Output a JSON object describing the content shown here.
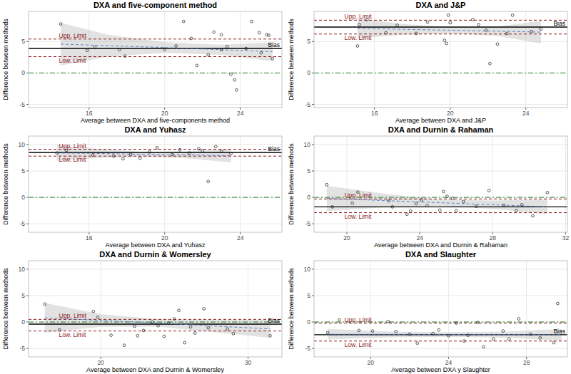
{
  "chart_data": [
    {
      "type": "scatter",
      "title": "DXA and five-component method",
      "x_label": "Average between DXA and five-components method",
      "y_label": "Difference between methods",
      "xlim": [
        12.8,
        26.2
      ],
      "xticks": [
        16,
        20,
        24
      ],
      "ylim": [
        -5.5,
        9.8
      ],
      "yticks": [
        -5,
        0,
        5
      ],
      "grid": true,
      "marker": "circle",
      "color": "#1a1a1a",
      "x": [
        14.5,
        15.9,
        16.3,
        17.6,
        17.9,
        20.0,
        20.6,
        21.0,
        21.4,
        21.7,
        22.3,
        22.6,
        23.0,
        23.0,
        23.3,
        23.5,
        23.7,
        23.8,
        24.3,
        24.6,
        25.0,
        25.1,
        25.4,
        25.5,
        25.7
      ],
      "values": [
        7.8,
        3.6,
        4.1,
        3.7,
        2.7,
        3.8,
        4.3,
        8.2,
        5.5,
        1.2,
        2.9,
        6.5,
        6.1,
        3.7,
        4.2,
        -0.2,
        -1.1,
        -2.7,
        3.9,
        8.2,
        6.4,
        3.2,
        6.1,
        6.0,
        2.3
      ],
      "reference_lines": [
        {
          "label": "Bias",
          "value": 3.9,
          "color": "#000000",
          "line_style": "solid"
        },
        {
          "label": "Upp. Limit",
          "value": 5.4,
          "color": "#8b1a1a",
          "line_style": "dashed"
        },
        {
          "label": "Low. Limit",
          "value": 2.6,
          "color": "#8b1a1a",
          "line_style": "dashed"
        },
        {
          "value": 0,
          "color": "#1e7b1e",
          "line_style": "dashdot"
        }
      ],
      "fit": {
        "x": [
          14.5,
          17,
          20,
          23,
          25.7
        ],
        "values": [
          4.6,
          4.35,
          4.05,
          3.7,
          3.4
        ],
        "lower": [
          1.2,
          2.6,
          3.2,
          2.9,
          1.9
        ],
        "upper": [
          8.0,
          6.1,
          4.9,
          4.5,
          4.9
        ],
        "color": "#5b7fc7",
        "band_color": "#bebebe",
        "line_style": "dashed"
      }
    },
    {
      "type": "scatter",
      "title": "DXA and J&P",
      "x_label": "Average between DXA and J&P",
      "y_label": "Difference between methods",
      "xlim": [
        12.8,
        26.2
      ],
      "xticks": [
        16,
        20,
        24
      ],
      "ylim": [
        -5.5,
        9.8
      ],
      "yticks": [
        -5,
        0,
        5
      ],
      "grid": true,
      "marker": "circle",
      "color": "#1a1a1a",
      "x": [
        15.1,
        15.2,
        15.6,
        16.6,
        17.2,
        18.2,
        18.8,
        19.7,
        19.8,
        19.9,
        20.0,
        21.2,
        21.5,
        21.9,
        22.1,
        22.5,
        23.0,
        23.3,
        24.3,
        24.8
      ],
      "values": [
        4.3,
        7.7,
        8.5,
        6.4,
        7.6,
        6.3,
        8.1,
        5.2,
        4.7,
        9.2,
        8.0,
        8.5,
        7.7,
        6.8,
        1.5,
        4.6,
        6.3,
        9.2,
        6.6,
        7.0
      ],
      "reference_lines": [
        {
          "label": "Bias",
          "value": 7.3,
          "color": "#000000",
          "line_style": "solid"
        },
        {
          "label": "Upp. Limit",
          "value": 8.4,
          "color": "#8b1a1a",
          "line_style": "dashed"
        },
        {
          "label": "Low. Limit",
          "value": 6.2,
          "color": "#8b1a1a",
          "line_style": "dashed"
        },
        {
          "value": 0,
          "color": "#1e7b1e",
          "line_style": "dashdot"
        }
      ],
      "fit": {
        "x": [
          15.1,
          17.5,
          20,
          22.5,
          24.8
        ],
        "values": [
          7.1,
          6.95,
          6.8,
          6.65,
          6.5
        ],
        "lower": [
          5.5,
          6.1,
          6.3,
          5.9,
          4.7
        ],
        "upper": [
          8.7,
          7.8,
          7.3,
          7.4,
          8.3
        ],
        "color": "#5b7fc7",
        "band_color": "#bebebe",
        "line_style": "dashed"
      }
    },
    {
      "type": "scatter",
      "title": "DXA and Yuhasz",
      "x_label": "Average between DXA and Yuhasz",
      "y_label": "Difference between methods",
      "xlim": [
        12.8,
        26.2
      ],
      "xticks": [
        16,
        20,
        24
      ],
      "ylim": [
        -6.6,
        11.6
      ],
      "yticks": [
        -5,
        0,
        5,
        10
      ],
      "grid": true,
      "marker": "circle",
      "color": "#1a1a1a",
      "x": [
        14.3,
        14.8,
        16.2,
        17.3,
        17.8,
        18.2,
        18.7,
        19.2,
        19.6,
        20.4,
        20.8,
        21.3,
        21.8,
        22.0,
        22.3,
        22.7,
        23.0,
        23.5
      ],
      "values": [
        8.4,
        8.9,
        8.0,
        7.8,
        7.3,
        8.1,
        7.4,
        8.6,
        9.4,
        8.1,
        9.0,
        8.4,
        9.2,
        8.8,
        3.0,
        9.6,
        8.7,
        8.3
      ],
      "reference_lines": [
        {
          "label": "Bias",
          "value": 8.5,
          "color": "#000000",
          "line_style": "solid"
        },
        {
          "label": "Upp. Limit",
          "value": 9.1,
          "color": "#8b1a1a",
          "line_style": "dashed"
        },
        {
          "label": "Low. Limit",
          "value": 7.8,
          "color": "#8b1a1a",
          "line_style": "dashed"
        },
        {
          "value": 0,
          "color": "#1e7b1e",
          "line_style": "dashdot"
        }
      ],
      "fit": {
        "x": [
          14.3,
          16.6,
          18.9,
          21.2,
          23.5
        ],
        "values": [
          8.4,
          8.3,
          8.15,
          8.05,
          7.9
        ],
        "lower": [
          6.9,
          7.5,
          7.7,
          7.4,
          6.6
        ],
        "upper": [
          9.9,
          9.1,
          8.6,
          8.7,
          9.2
        ],
        "color": "#5b7fc7",
        "band_color": "#bebebe",
        "line_style": "dashed"
      }
    },
    {
      "type": "scatter",
      "title": "DXA and Durnin & Rahaman",
      "x_label": "Average between DXA and Durnin & Rahaman",
      "y_label": "Difference between methods",
      "xlim": [
        18.2,
        32.1
      ],
      "xticks": [
        20,
        24,
        28,
        32
      ],
      "ylim": [
        -6.6,
        11.6
      ],
      "yticks": [
        -5,
        0,
        5,
        10
      ],
      "grid": true,
      "marker": "circle",
      "color": "#1a1a1a",
      "x": [
        18.9,
        19.2,
        20.3,
        20.6,
        22.3,
        22.5,
        23.3,
        23.5,
        23.8,
        24.1,
        24.4,
        25.1,
        25.3,
        25.5,
        25.8,
        26.0,
        26.4,
        27.1,
        27.8,
        28.6,
        29.3,
        29.6,
        30.2,
        31.0
      ],
      "values": [
        2.4,
        -1.8,
        -1.1,
        1.0,
        -0.6,
        -1.8,
        -3.2,
        -2.6,
        -1.2,
        -0.5,
        -1.6,
        -2.4,
        1.1,
        0.2,
        -0.2,
        -2.5,
        -0.8,
        -1.7,
        1.3,
        -1.5,
        -2.5,
        -1.4,
        -3.5,
        0.9
      ],
      "reference_lines": [
        {
          "value": -1.8,
          "color": "#000000",
          "line_style": "solid"
        },
        {
          "label": "Upp. Limit",
          "value": -0.3,
          "color": "#8b1a1a",
          "line_style": "dashed"
        },
        {
          "label": "Low. Limit",
          "value": -2.9,
          "color": "#8b1a1a",
          "line_style": "dashed"
        },
        {
          "value": 0,
          "color": "#1e7b1e",
          "line_style": "dashdot"
        }
      ],
      "fit": {
        "x": [
          18.9,
          22,
          25,
          28,
          31
        ],
        "values": [
          -0.2,
          -0.6,
          -1.0,
          -1.4,
          -1.8
        ],
        "lower": [
          -2.6,
          -1.9,
          -1.6,
          -2.2,
          -3.2
        ],
        "upper": [
          2.2,
          0.7,
          -0.4,
          -0.6,
          -0.4
        ],
        "color": "#5b7fc7",
        "band_color": "#bebebe",
        "line_style": "dashed"
      }
    },
    {
      "type": "scatter",
      "title": "DXA and Durnin & Womersley",
      "x_label": "Average between DXA and Durnin & Womersley",
      "y_label": "Difference between methods",
      "xlim": [
        15.1,
        32.3
      ],
      "xticks": [
        20,
        30
      ],
      "ylim": [
        -6.6,
        11.6
      ],
      "yticks": [
        -5,
        0,
        5,
        10
      ],
      "grid": true,
      "marker": "circle",
      "color": "#1a1a1a",
      "x": [
        16.2,
        17.2,
        19.5,
        19.8,
        20.7,
        21.6,
        22.3,
        22.5,
        22.9,
        23.5,
        23.9,
        24.3,
        24.6,
        25.0,
        25.3,
        25.7,
        26.1,
        26.4,
        27.0,
        27.3,
        28.6,
        29.0,
        31.5
      ],
      "values": [
        3.4,
        -1.5,
        2.0,
        0.9,
        -2.5,
        -4.4,
        -0.8,
        -2.6,
        -1.6,
        0.0,
        -0.7,
        -2.7,
        -0.2,
        0.6,
        2.2,
        -3.9,
        -0.9,
        -2.1,
        2.5,
        -1.1,
        -1.3,
        -2.2,
        -2.6
      ],
      "reference_lines": [
        {
          "label": "Bias",
          "value": -0.4,
          "color": "#000000",
          "line_style": "solid"
        },
        {
          "label": "Upp. Limit",
          "value": 0.5,
          "color": "#8b1a1a",
          "line_style": "dashed"
        },
        {
          "label": "Low. Limit",
          "value": -1.7,
          "color": "#8b1a1a",
          "line_style": "dashed"
        },
        {
          "value": 0,
          "color": "#1e7b1e",
          "line_style": "dashdot"
        }
      ],
      "fit": {
        "x": [
          16.2,
          20,
          24,
          28,
          31.5
        ],
        "values": [
          0.8,
          0.3,
          -0.2,
          -0.8,
          -1.3
        ],
        "lower": [
          -2.0,
          -0.9,
          -0.9,
          -2.0,
          -3.0
        ],
        "upper": [
          3.6,
          1.5,
          0.5,
          0.4,
          0.4
        ],
        "color": "#5b7fc7",
        "band_color": "#bebebe",
        "line_style": "dashed"
      }
    },
    {
      "type": "scatter",
      "title": "DXA and Slaughter",
      "x_label": "Average between DXA y Slaughter",
      "y_label": "Difference between methods",
      "xlim": [
        17.1,
        30.1
      ],
      "xticks": [
        20,
        24,
        28
      ],
      "ylim": [
        -6.6,
        11.6
      ],
      "yticks": [
        -5,
        0,
        5,
        10
      ],
      "grid": true,
      "marker": "circle",
      "color": "#1a1a1a",
      "x": [
        17.8,
        18.4,
        19.4,
        20.1,
        20.9,
        21.3,
        22.0,
        22.4,
        23.2,
        23.5,
        24.0,
        24.4,
        24.8,
        25.0,
        25.5,
        25.8,
        26.3,
        26.8,
        27.1,
        27.6,
        28.2,
        28.7,
        29.4,
        29.6
      ],
      "values": [
        -2.0,
        0.4,
        -1.6,
        -1.7,
        0.1,
        -1.8,
        -2.3,
        -4.0,
        -2.2,
        -1.5,
        -2.6,
        -0.2,
        -3.6,
        -2.5,
        -0.1,
        -4.7,
        -3.2,
        -1.7,
        -3.2,
        0.6,
        -2.3,
        -3.0,
        -3.9,
        3.5
      ],
      "reference_lines": [
        {
          "label": "Bias",
          "value": -2.4,
          "color": "#000000",
          "line_style": "solid"
        },
        {
          "label": "Upp. Limit",
          "value": -0.2,
          "color": "#8b1a1a",
          "line_style": "dashed"
        },
        {
          "label": "Low. Limit",
          "value": -3.6,
          "color": "#8b1a1a",
          "line_style": "dashed"
        },
        {
          "value": 0,
          "color": "#1e7b1e",
          "line_style": "dashdot"
        }
      ],
      "fit": {
        "x": [
          17.8,
          21,
          24,
          27,
          29.8
        ],
        "values": [
          -2.3,
          -2.33,
          -2.35,
          -2.38,
          -2.4
        ],
        "lower": [
          -3.3,
          -2.9,
          -2.8,
          -3.0,
          -3.5
        ],
        "upper": [
          -1.3,
          -1.8,
          -1.9,
          -1.8,
          -1.3
        ],
        "color": "#5b7fc7",
        "band_color": "#bebebe",
        "line_style": "dashed"
      }
    }
  ]
}
